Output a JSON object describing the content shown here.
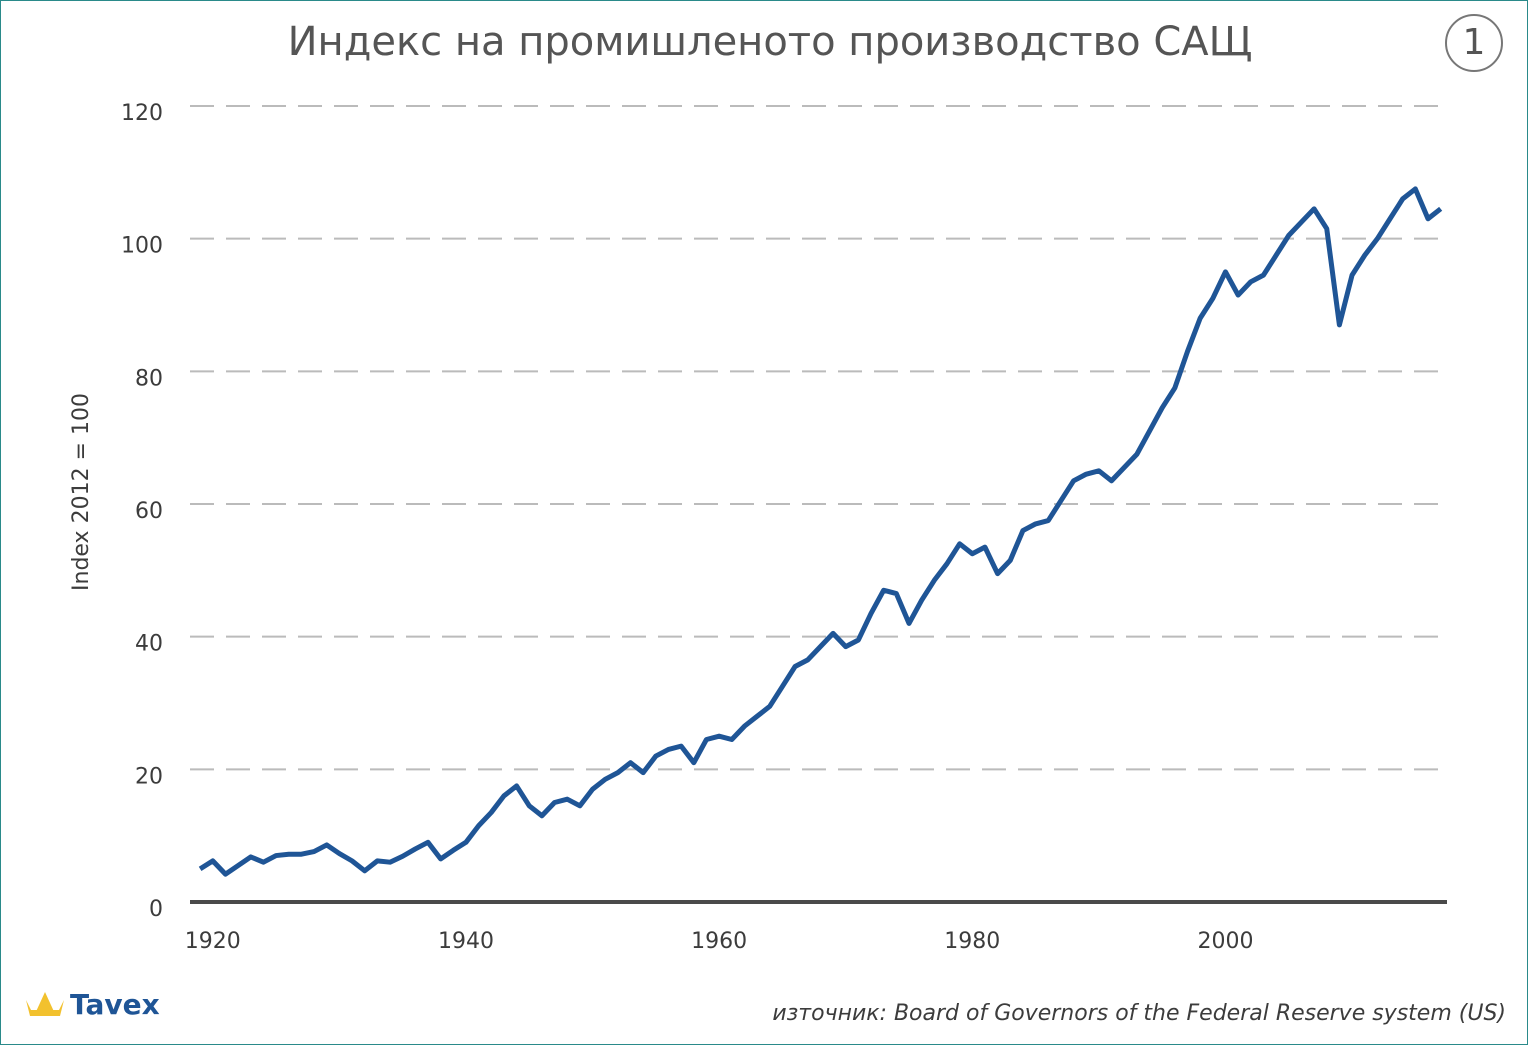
{
  "chart_data": {
    "type": "line",
    "title": "Индекс на промишленото производство САЩ",
    "badge": "1",
    "ylabel": "Index 2012 = 100",
    "logo": "Tavex",
    "source": "източник: Board of Governors of the Federal Reserve system (US)",
    "xlim": [
      1918.2,
      2017.5
    ],
    "xticks": [
      1920,
      1940,
      1960,
      1980,
      2000
    ],
    "ylim": [
      0,
      120
    ],
    "yticks": [
      0,
      20,
      40,
      60,
      80,
      100,
      120
    ],
    "grid": true,
    "x": [
      1919,
      1920,
      1921,
      1922,
      1923,
      1924,
      1925,
      1926,
      1927,
      1928,
      1929,
      1930,
      1931,
      1932,
      1933,
      1934,
      1935,
      1936,
      1937,
      1938,
      1939,
      1940,
      1941,
      1942,
      1943,
      1944,
      1945,
      1946,
      1947,
      1948,
      1949,
      1950,
      1951,
      1952,
      1953,
      1954,
      1955,
      1956,
      1957,
      1958,
      1959,
      1960,
      1961,
      1962,
      1963,
      1964,
      1965,
      1966,
      1967,
      1968,
      1969,
      1970,
      1971,
      1972,
      1973,
      1974,
      1975,
      1976,
      1977,
      1978,
      1979,
      1980,
      1981,
      1982,
      1983,
      1984,
      1985,
      1986,
      1987,
      1988,
      1989,
      1990,
      1991,
      1992,
      1993,
      1994,
      1995,
      1996,
      1997,
      1998,
      1999,
      2000,
      2001,
      2002,
      2003,
      2004,
      2005,
      2006,
      2007,
      2008,
      2009,
      2010,
      2011,
      2012,
      2013,
      2014,
      2015,
      2016,
      2017
    ],
    "series": [
      {
        "name": "Index",
        "color": "#1f5596",
        "values": [
          5,
          6.2,
          4.2,
          5.5,
          6.8,
          6.0,
          7.0,
          7.2,
          7.2,
          7.6,
          8.6,
          7.3,
          6.2,
          4.7,
          6.2,
          6.0,
          6.9,
          8.0,
          9.0,
          6.5,
          7.8,
          9.0,
          11.5,
          13.5,
          16.0,
          17.5,
          14.5,
          13.0,
          15.0,
          15.5,
          14.5,
          17.0,
          18.5,
          19.5,
          21.0,
          19.5,
          22.0,
          23.0,
          23.5,
          21.0,
          24.5,
          25.0,
          24.5,
          26.5,
          28.0,
          29.5,
          32.5,
          35.5,
          36.5,
          38.5,
          40.5,
          38.5,
          39.5,
          43.5,
          47.0,
          46.5,
          42.0,
          45.5,
          48.5,
          51.0,
          54.0,
          52.5,
          53.5,
          49.5,
          51.5,
          56.0,
          57.0,
          57.5,
          60.5,
          63.5,
          64.5,
          65.0,
          63.5,
          65.5,
          67.5,
          71.0,
          74.5,
          77.5,
          83.0,
          88.0,
          91.0,
          95.0,
          91.5,
          93.5,
          94.5,
          97.5,
          100.5,
          102.5,
          104.5,
          101.5,
          87.0,
          94.5,
          97.5,
          100,
          103,
          106,
          107.5,
          103,
          104.5
        ]
      }
    ]
  }
}
